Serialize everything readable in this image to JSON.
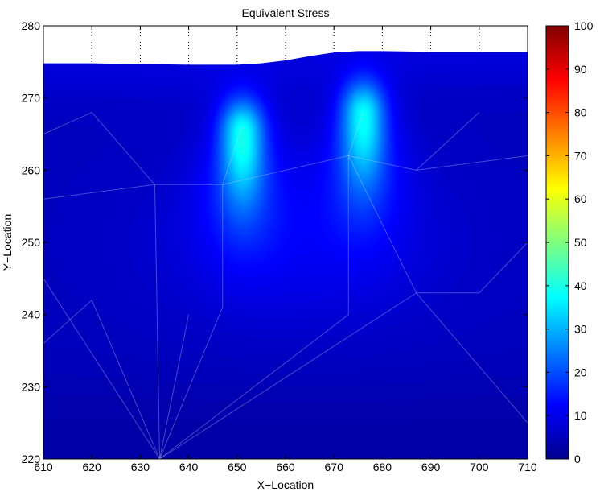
{
  "chart_data": {
    "type": "heatmap",
    "title": "Equivalent Stress",
    "xlabel": "X−Location",
    "ylabel": "Y−Location",
    "xlim": [
      610,
      710
    ],
    "ylim": [
      220,
      280
    ],
    "xticks": [
      "610",
      "620",
      "630",
      "640",
      "650",
      "660",
      "670",
      "680",
      "690",
      "700",
      "710"
    ],
    "yticks": [
      "220",
      "230",
      "240",
      "250",
      "260",
      "270",
      "280"
    ],
    "grid": true,
    "colormap": "jet",
    "colorbar": {
      "range": [
        0,
        100
      ],
      "ticks": [
        "0",
        "10",
        "20",
        "30",
        "40",
        "50",
        "60",
        "70",
        "80",
        "90",
        "100"
      ]
    },
    "top_surface": [
      [
        610,
        274.8
      ],
      [
        620,
        274.8
      ],
      [
        630,
        274.7
      ],
      [
        640,
        274.6
      ],
      [
        650,
        274.6
      ],
      [
        655,
        274.8
      ],
      [
        660,
        275.2
      ],
      [
        665,
        275.8
      ],
      [
        670,
        276.3
      ],
      [
        675,
        276.5
      ],
      [
        680,
        276.5
      ],
      [
        690,
        276.4
      ],
      [
        700,
        276.4
      ],
      [
        710,
        276.4
      ]
    ],
    "background_value": 6,
    "hotspots": [
      {
        "x": 651,
        "y": 265.5,
        "peak": 34
      },
      {
        "x": 676,
        "y": 268.0,
        "peak": 33
      }
    ]
  }
}
